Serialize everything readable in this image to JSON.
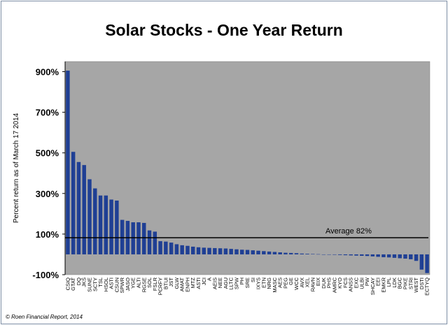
{
  "footer": "© Roen Financial Report, 2014",
  "chart_data": {
    "type": "bar",
    "title": "Solar Stocks - One Year Return",
    "xlabel": "",
    "ylabel": "Percent return as of March 17 2014",
    "ylim": [
      -100,
      950
    ],
    "yticks": [
      -100,
      100,
      300,
      500,
      700,
      900
    ],
    "ytick_labels": [
      "-100%",
      "100%",
      "300%",
      "500%",
      "700%",
      "900%"
    ],
    "grid": false,
    "legend": "none",
    "categories": [
      "CSIQ",
      "GTAT",
      "DQ",
      "JKS",
      "SUNE",
      "SCTY",
      "TSL",
      "HSOL",
      "ASTI",
      "CSUN",
      "SPWR",
      "JASO",
      "YGE",
      "ALTI",
      "RGSE",
      "SOL",
      "FSLR",
      "PCRFY",
      "BTUI",
      "JST",
      "GLW",
      "AMAT",
      "ENPH",
      "MTZ",
      "ASTI",
      "JCI",
      "A",
      "AEIS",
      "NEE",
      "AGU",
      "LLTC",
      "SPW",
      "PH",
      "SRE",
      "SI",
      "IXYS",
      "ETN",
      "NRG",
      "MASC",
      "AES",
      "PEG",
      "GE",
      "WCC",
      "AVX",
      "XEL",
      "RAVN",
      "EIX",
      "DUK",
      "PHS",
      "AMRC",
      "KYO",
      "FCS",
      "ANSS",
      "EXC",
      "ULBI",
      "PW",
      "SHCAY",
      "EEI",
      "EMKR",
      "LPL",
      "LDK",
      "BGC",
      "PIKE",
      "STRI",
      "WEST",
      "DSTI",
      "ECTYQ"
    ],
    "values": [
      905,
      505,
      455,
      440,
      370,
      325,
      290,
      290,
      270,
      265,
      170,
      165,
      158,
      158,
      155,
      118,
      112,
      65,
      63,
      58,
      50,
      45,
      42,
      38,
      35,
      33,
      32,
      31,
      30,
      29,
      27,
      25,
      23,
      22,
      20,
      18,
      16,
      14,
      12,
      10,
      8,
      7,
      6,
      4,
      3,
      2,
      1,
      0,
      -1,
      -2,
      -3,
      -4,
      -5,
      -6,
      -7,
      -8,
      -10,
      -12,
      -14,
      -15,
      -17,
      -19,
      -21,
      -24,
      -32,
      -75,
      -92
    ],
    "bar_color": "#1f3f94",
    "plot_background": "#a6a6a6",
    "average": {
      "value": 82,
      "label": "Average 82%",
      "color": "#000000"
    }
  }
}
